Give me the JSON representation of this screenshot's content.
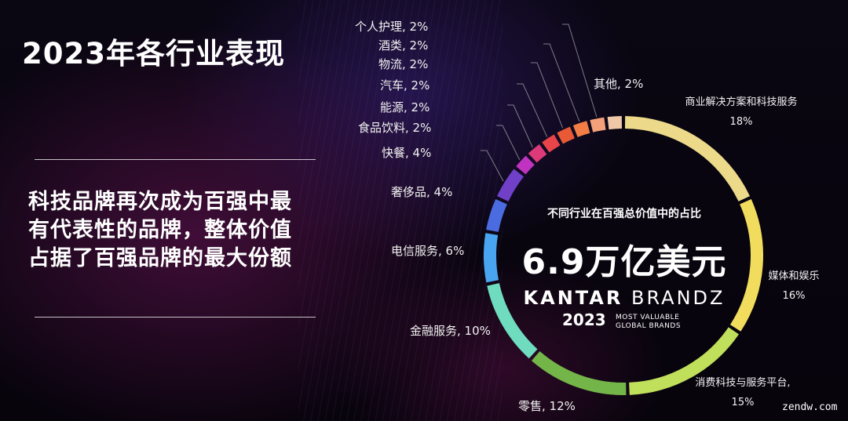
{
  "title": "2023年各行业表现",
  "headline": [
    "科技品牌再次成为百强中最",
    "有代表性的品牌，整体价值",
    "占据了百强品牌的最大份额"
  ],
  "center": {
    "subtitle": "不同行业在百强总价值中的占比",
    "total": "6.9万亿美元",
    "brand_prefix": "KANTAR",
    "brand_suffix": "BRANDZ",
    "year": "2023",
    "tagline_1": "MOST VALUABLE",
    "tagline_2": "GLOBAL BRANDS"
  },
  "labels": {
    "biz_name": "商业解决方案和科技服务",
    "biz_pct": "18%",
    "media_name": "媒体和娱乐",
    "media_pct": "16%",
    "consumer_name": "消费科技与服务平台,",
    "consumer_pct": "15%",
    "retail": "零售, 12%",
    "finance": "金融服务, 10%",
    "telecom": "电信服务, 6%",
    "luxury": "奢侈品, 4%",
    "fastfood": "快餐, 4%",
    "fnb": "食品饮料, 2%",
    "energy": "能源, 2%",
    "auto": "汽车, 2%",
    "logistics": "物流, 2%",
    "alcohol": "酒类, 2%",
    "personal": "个人护理, 2%",
    "other": "其他, 2%"
  },
  "watermark": "zendw.com",
  "chart_data": {
    "type": "pie",
    "title": "不同行业在百强总价值中的占比",
    "unit": "%",
    "categories": [
      "商业解决方案和科技服务",
      "媒体和娱乐",
      "消费科技与服务平台",
      "零售",
      "金融服务",
      "电信服务",
      "奢侈品",
      "快餐",
      "食品饮料",
      "能源",
      "汽车",
      "物流",
      "酒类",
      "个人护理",
      "其他"
    ],
    "values": [
      18,
      16,
      15,
      12,
      10,
      6,
      4,
      4,
      2,
      2,
      2,
      2,
      2,
      2,
      2
    ],
    "colors": [
      "#ecd98a",
      "#f1dc5e",
      "#c0df5a",
      "#74b54a",
      "#6fdcbf",
      "#4aa5f0",
      "#4a6ce0",
      "#7040c8",
      "#c032c0",
      "#dc3a78",
      "#e8444a",
      "#e85a36",
      "#f27e46",
      "#f4a07a",
      "#f0c8a8"
    ]
  }
}
